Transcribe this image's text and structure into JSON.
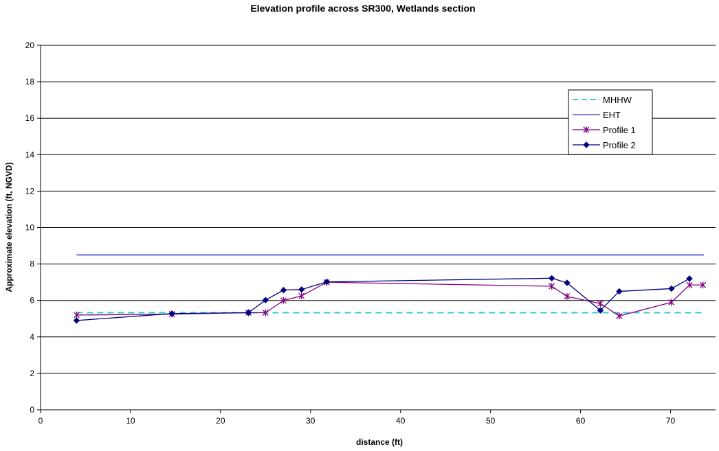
{
  "chart_data": {
    "type": "line",
    "title": "Elevation profile across SR300, Wetlands section",
    "xlabel": "distance (ft)",
    "ylabel": "Approximate elevation (ft, NGVD)",
    "xlim": [
      0,
      75
    ],
    "ylim": [
      0,
      20
    ],
    "xticks": [
      0,
      10,
      20,
      30,
      40,
      50,
      60,
      70
    ],
    "yticks": [
      0,
      2,
      4,
      6,
      8,
      10,
      12,
      14,
      16,
      18,
      20
    ],
    "grid": "horizontal",
    "legend_position": "top-right",
    "series": [
      {
        "name": "MHHW",
        "color": "#33CCCC",
        "style": "dashed",
        "marker": "none",
        "x": [
          4,
          73.7
        ],
        "y": [
          5.33,
          5.33
        ]
      },
      {
        "name": "EHT",
        "color": "#3333CC",
        "style": "solid",
        "marker": "none",
        "x": [
          4,
          73.7
        ],
        "y": [
          8.5,
          8.5
        ]
      },
      {
        "name": "Profile 1",
        "color": "#800080",
        "style": "solid",
        "marker": "star",
        "x": [
          4,
          14.6,
          23.1,
          25,
          27,
          29,
          31.8,
          56.8,
          58.5,
          62.2,
          64.3,
          70.1,
          72.1,
          73.6
        ],
        "y": [
          5.2,
          5.25,
          5.33,
          5.33,
          6.0,
          6.25,
          7.0,
          6.78,
          6.22,
          5.83,
          5.15,
          5.9,
          6.85,
          6.85
        ]
      },
      {
        "name": "Profile 2",
        "color": "#000080",
        "style": "solid",
        "marker": "diamond",
        "x": [
          4,
          14.6,
          23.1,
          25,
          27,
          29,
          31.8,
          56.8,
          58.5,
          62.2,
          64.3,
          70.1,
          72.1
        ],
        "y": [
          4.9,
          5.28,
          5.33,
          6.02,
          6.57,
          6.6,
          7.02,
          7.22,
          6.97,
          5.45,
          6.5,
          6.65,
          7.2
        ]
      }
    ]
  }
}
